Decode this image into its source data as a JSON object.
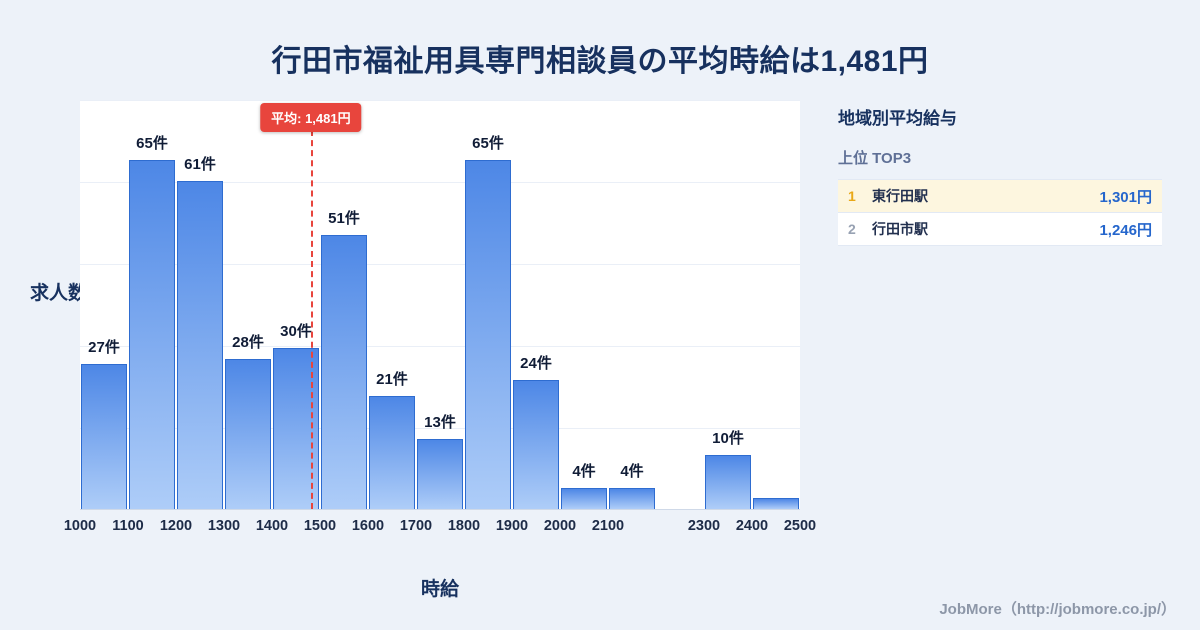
{
  "page": {
    "title": "行田市福祉用具専門相談員の平均時給は1,481円",
    "footer": "JobMore（http://jobmore.co.jp/）"
  },
  "chart_data": {
    "type": "bar",
    "title": "行田市福祉用具専門相談員の平均時給は1,481円",
    "xlabel": "時給",
    "ylabel": "求人数",
    "x_min": 1000,
    "x_max": 2500,
    "bin_size": 100,
    "ylim": [
      0,
      70
    ],
    "grid": true,
    "x_ticks": [
      1000,
      1100,
      1200,
      1300,
      1400,
      1500,
      1600,
      1700,
      1800,
      1900,
      2000,
      2100,
      2300,
      2400,
      2500
    ],
    "bins": [
      {
        "x0": 1000,
        "x1": 1100,
        "count": 27,
        "label": "27件"
      },
      {
        "x0": 1100,
        "x1": 1200,
        "count": 65,
        "label": "65件"
      },
      {
        "x0": 1200,
        "x1": 1300,
        "count": 61,
        "label": "61件"
      },
      {
        "x0": 1300,
        "x1": 1400,
        "count": 28,
        "label": "28件"
      },
      {
        "x0": 1400,
        "x1": 1500,
        "count": 30,
        "label": "30件"
      },
      {
        "x0": 1500,
        "x1": 1600,
        "count": 51,
        "label": "51件"
      },
      {
        "x0": 1600,
        "x1": 1700,
        "count": 21,
        "label": "21件"
      },
      {
        "x0": 1700,
        "x1": 1800,
        "count": 13,
        "label": "13件"
      },
      {
        "x0": 1800,
        "x1": 1900,
        "count": 65,
        "label": "65件"
      },
      {
        "x0": 1900,
        "x1": 2000,
        "count": 24,
        "label": "24件"
      },
      {
        "x0": 2000,
        "x1": 2100,
        "count": 4,
        "label": "4件"
      },
      {
        "x0": 2100,
        "x1": 2200,
        "count": 4,
        "label": "4件"
      },
      {
        "x0": 2200,
        "x1": 2300,
        "count": 0,
        "label": ""
      },
      {
        "x0": 2300,
        "x1": 2400,
        "count": 10,
        "label": "10件"
      },
      {
        "x0": 2400,
        "x1": 2500,
        "count": 2,
        "label": ""
      }
    ],
    "average": {
      "value": 1481,
      "label": "平均: 1,481円"
    },
    "colors": {
      "bar_fill_top": "#4d87e6",
      "bar_fill_bottom": "#aecdf8",
      "bar_border": "#2e6cd0",
      "average_red": "#e8453d",
      "title_navy": "#17315f",
      "value_blue": "#2566cc",
      "rank1_gold": "#e9a817"
    }
  },
  "side_panel": {
    "title": "地域別平均給与",
    "subtitle": "上位 TOP3",
    "rows": [
      {
        "rank": "1",
        "name": "東行田駅",
        "value": "1,301円"
      },
      {
        "rank": "2",
        "name": "行田市駅",
        "value": "1,246円"
      }
    ]
  }
}
